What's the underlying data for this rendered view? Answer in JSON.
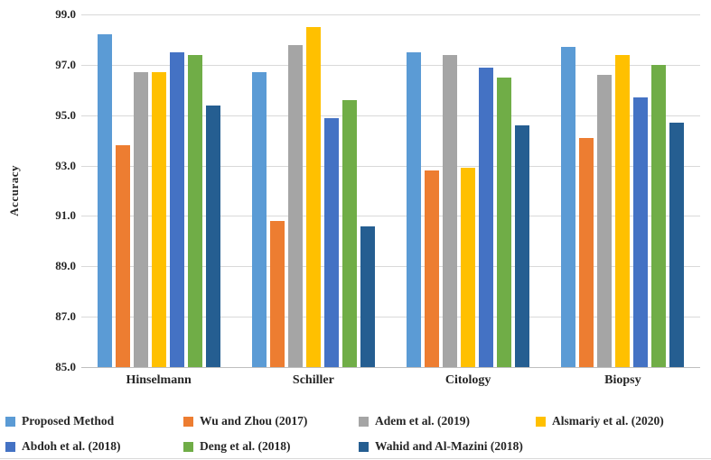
{
  "figure": {
    "background": "#FFFFFF",
    "text_color": "#262626",
    "bottom_border_color": "#D9D9D9"
  },
  "chart_data": {
    "type": "bar",
    "title": "",
    "xlabel": "",
    "ylabel": "Accuracy",
    "ylim": [
      85,
      99
    ],
    "ytick_step": 2,
    "ytick_labels": [
      "85.0",
      "87.0",
      "89.0",
      "91.0",
      "93.0",
      "95.0",
      "97.0",
      "99.0"
    ],
    "grid": true,
    "gridline_color": "#D9D9D9",
    "axis_line_color": "#BFBFBF",
    "legend_position": "bottom",
    "categories": [
      "Hinselmann",
      "Schiller",
      "Citology",
      "Biopsy"
    ],
    "series": [
      {
        "name": "Proposed Method",
        "color": "#5B9BD5",
        "values": [
          98.2,
          96.7,
          97.5,
          97.7
        ]
      },
      {
        "name": "Wu and Zhou (2017)",
        "color": "#ED7D31",
        "values": [
          93.8,
          90.8,
          92.8,
          94.1
        ]
      },
      {
        "name": "Adem et al. (2019)",
        "color": "#A5A5A5",
        "values": [
          96.7,
          97.8,
          97.4,
          96.6
        ]
      },
      {
        "name": "Alsmariy et al. (2020)",
        "color": "#FFC000",
        "values": [
          96.7,
          98.5,
          92.9,
          97.4
        ]
      },
      {
        "name": "Abdoh et al. (2018)",
        "color": "#4472C4",
        "values": [
          97.5,
          94.9,
          96.9,
          95.7
        ]
      },
      {
        "name": "Deng et al. (2018)",
        "color": "#70AD47",
        "values": [
          97.4,
          95.6,
          96.5,
          97.0
        ]
      },
      {
        "name": "Wahid and Al-Mazini (2018)",
        "color": "#255E91",
        "values": [
          95.4,
          90.6,
          94.6,
          94.7
        ]
      }
    ]
  }
}
